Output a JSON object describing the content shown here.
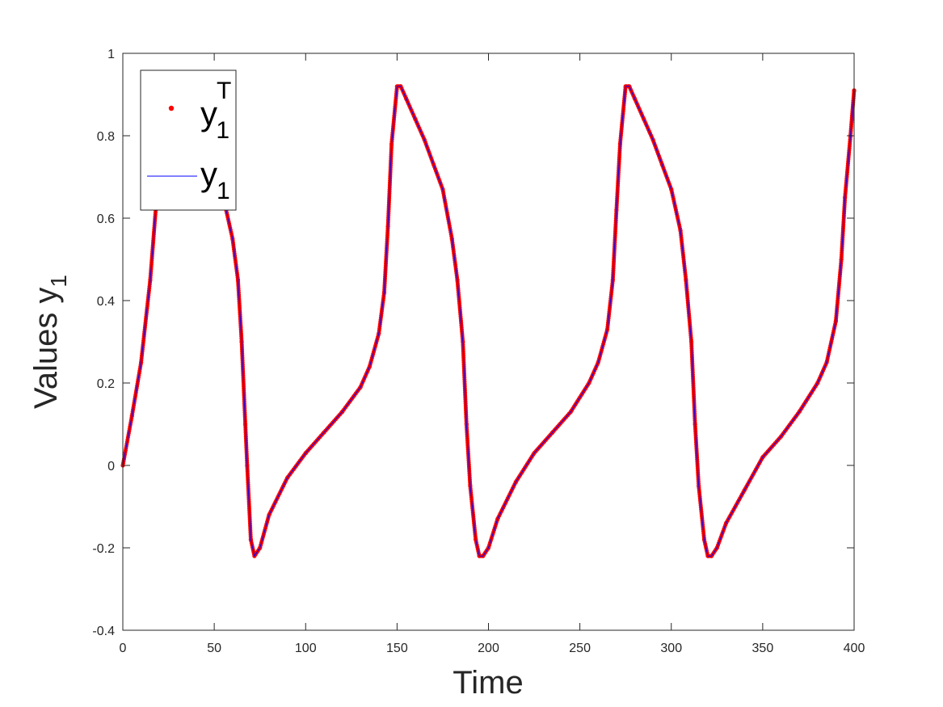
{
  "chart_data": {
    "type": "line",
    "title": "",
    "xlabel": "Time",
    "ylabel": {
      "base": "Values y",
      "sub": "1"
    },
    "xlim": [
      0,
      400
    ],
    "ylim": [
      -0.4,
      1
    ],
    "xticks": [
      0,
      50,
      100,
      150,
      200,
      250,
      300,
      350,
      400
    ],
    "xtick_labels": [
      "0",
      "50",
      "100",
      "150",
      "200",
      "250",
      "300",
      "350",
      "400"
    ],
    "yticks": [
      -0.4,
      -0.2,
      0,
      0.2,
      0.4,
      0.6,
      0.8,
      1
    ],
    "ytick_labels": [
      "-0.4",
      "-0.2",
      "0",
      "0.2",
      "0.4",
      "0.6",
      "0.8",
      "1"
    ],
    "grid": false,
    "legend_position": "top-left",
    "legend": [
      {
        "base": "y",
        "sub": "1",
        "sup": "T",
        "marker": "dot",
        "color": "#ff0000"
      },
      {
        "base": "y",
        "sub": "1",
        "sup": "",
        "marker": "line",
        "color": "#0000ff"
      }
    ],
    "series": [
      {
        "name": "y1T",
        "style": "dots",
        "color": "#ff0000",
        "x": [
          0,
          5,
          10,
          15,
          18,
          22,
          28,
          35,
          42,
          50,
          55,
          60,
          63,
          65,
          67,
          68,
          70,
          72,
          75,
          80,
          90,
          100,
          110,
          120,
          130,
          135,
          140,
          143,
          145,
          147,
          150,
          152,
          155,
          160,
          165,
          170,
          175,
          180,
          183,
          186,
          188,
          190,
          193,
          195,
          197,
          200,
          205,
          215,
          225,
          235,
          245,
          255,
          260,
          265,
          268,
          270,
          272,
          275,
          277,
          280,
          285,
          290,
          295,
          300,
          305,
          308,
          311,
          313,
          315,
          318,
          320,
          322,
          325,
          330,
          340,
          350,
          360,
          370,
          380,
          385,
          390,
          393,
          395,
          398,
          400
        ],
        "y": [
          0,
          0.12,
          0.25,
          0.45,
          0.62,
          0.8,
          0.92,
          0.88,
          0.82,
          0.72,
          0.65,
          0.55,
          0.45,
          0.3,
          0.1,
          0.0,
          -0.18,
          -0.22,
          -0.2,
          -0.12,
          -0.03,
          0.03,
          0.08,
          0.13,
          0.19,
          0.24,
          0.32,
          0.42,
          0.58,
          0.78,
          0.92,
          0.92,
          0.89,
          0.84,
          0.79,
          0.73,
          0.67,
          0.55,
          0.45,
          0.3,
          0.1,
          -0.05,
          -0.18,
          -0.22,
          -0.22,
          -0.2,
          -0.13,
          -0.04,
          0.03,
          0.08,
          0.13,
          0.2,
          0.25,
          0.33,
          0.45,
          0.62,
          0.78,
          0.92,
          0.92,
          0.89,
          0.84,
          0.79,
          0.73,
          0.67,
          0.57,
          0.45,
          0.3,
          0.1,
          -0.05,
          -0.18,
          -0.22,
          -0.22,
          -0.2,
          -0.14,
          -0.06,
          0.02,
          0.07,
          0.13,
          0.2,
          0.25,
          0.35,
          0.5,
          0.65,
          0.8,
          0.91
        ]
      },
      {
        "name": "y1",
        "style": "line",
        "color": "#0000ff",
        "x": [
          0,
          5,
          10,
          15,
          18,
          22,
          28,
          35,
          42,
          50,
          55,
          60,
          63,
          65,
          67,
          68,
          70,
          72,
          75,
          80,
          90,
          100,
          110,
          120,
          130,
          135,
          140,
          143,
          145,
          147,
          150,
          152,
          155,
          160,
          165,
          170,
          175,
          180,
          183,
          186,
          188,
          190,
          193,
          195,
          197,
          200,
          205,
          215,
          225,
          235,
          245,
          255,
          260,
          265,
          268,
          270,
          272,
          275,
          277,
          280,
          285,
          290,
          295,
          300,
          305,
          308,
          311,
          313,
          315,
          318,
          320,
          322,
          325,
          330,
          340,
          350,
          360,
          370,
          380,
          385,
          390,
          393,
          395,
          398,
          400
        ],
        "y": [
          0,
          0.12,
          0.25,
          0.45,
          0.62,
          0.8,
          0.92,
          0.88,
          0.82,
          0.72,
          0.65,
          0.55,
          0.45,
          0.3,
          0.1,
          0.0,
          -0.18,
          -0.22,
          -0.2,
          -0.12,
          -0.03,
          0.03,
          0.08,
          0.13,
          0.19,
          0.24,
          0.32,
          0.42,
          0.58,
          0.78,
          0.92,
          0.92,
          0.89,
          0.84,
          0.79,
          0.73,
          0.67,
          0.55,
          0.45,
          0.3,
          0.1,
          -0.05,
          -0.18,
          -0.22,
          -0.22,
          -0.2,
          -0.13,
          -0.04,
          0.03,
          0.08,
          0.13,
          0.2,
          0.25,
          0.33,
          0.45,
          0.62,
          0.78,
          0.92,
          0.92,
          0.89,
          0.84,
          0.79,
          0.73,
          0.67,
          0.57,
          0.45,
          0.3,
          0.1,
          -0.05,
          -0.18,
          -0.22,
          -0.22,
          -0.2,
          -0.14,
          -0.06,
          0.02,
          0.07,
          0.13,
          0.2,
          0.25,
          0.35,
          0.5,
          0.65,
          0.8,
          0.91
        ]
      }
    ]
  }
}
